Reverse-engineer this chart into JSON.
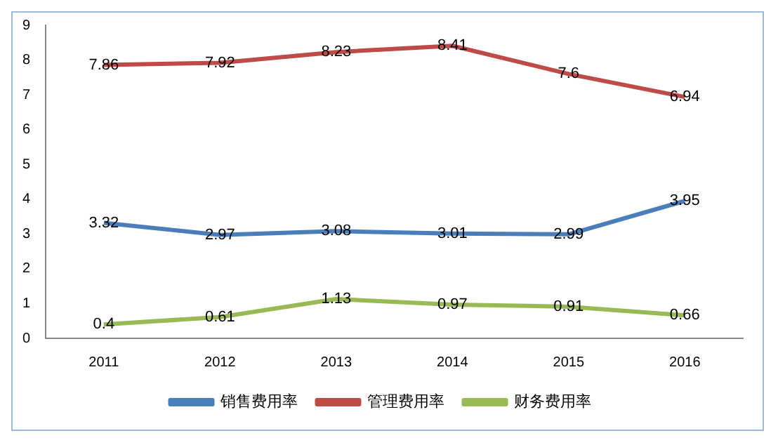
{
  "chart_data": {
    "type": "line",
    "categories": [
      "2011",
      "2012",
      "2013",
      "2014",
      "2015",
      "2016"
    ],
    "series": [
      {
        "name": "销售费用率",
        "color": "#4a7ebb",
        "values": [
          3.32,
          2.97,
          3.08,
          3.01,
          2.99,
          3.95
        ]
      },
      {
        "name": "管理费用率",
        "color": "#be4b48",
        "values": [
          7.86,
          7.92,
          8.23,
          8.41,
          7.6,
          6.94
        ]
      },
      {
        "name": "财务费用率",
        "color": "#98b954",
        "values": [
          0.4,
          0.61,
          1.13,
          0.97,
          0.91,
          0.66
        ]
      }
    ],
    "ylim": [
      0,
      9
    ],
    "yticks": [
      0,
      1,
      2,
      3,
      4,
      5,
      6,
      7,
      8,
      9
    ],
    "grid": false,
    "legend": "bottom",
    "marker": "none",
    "line_style": "solid",
    "data_labels": true
  }
}
